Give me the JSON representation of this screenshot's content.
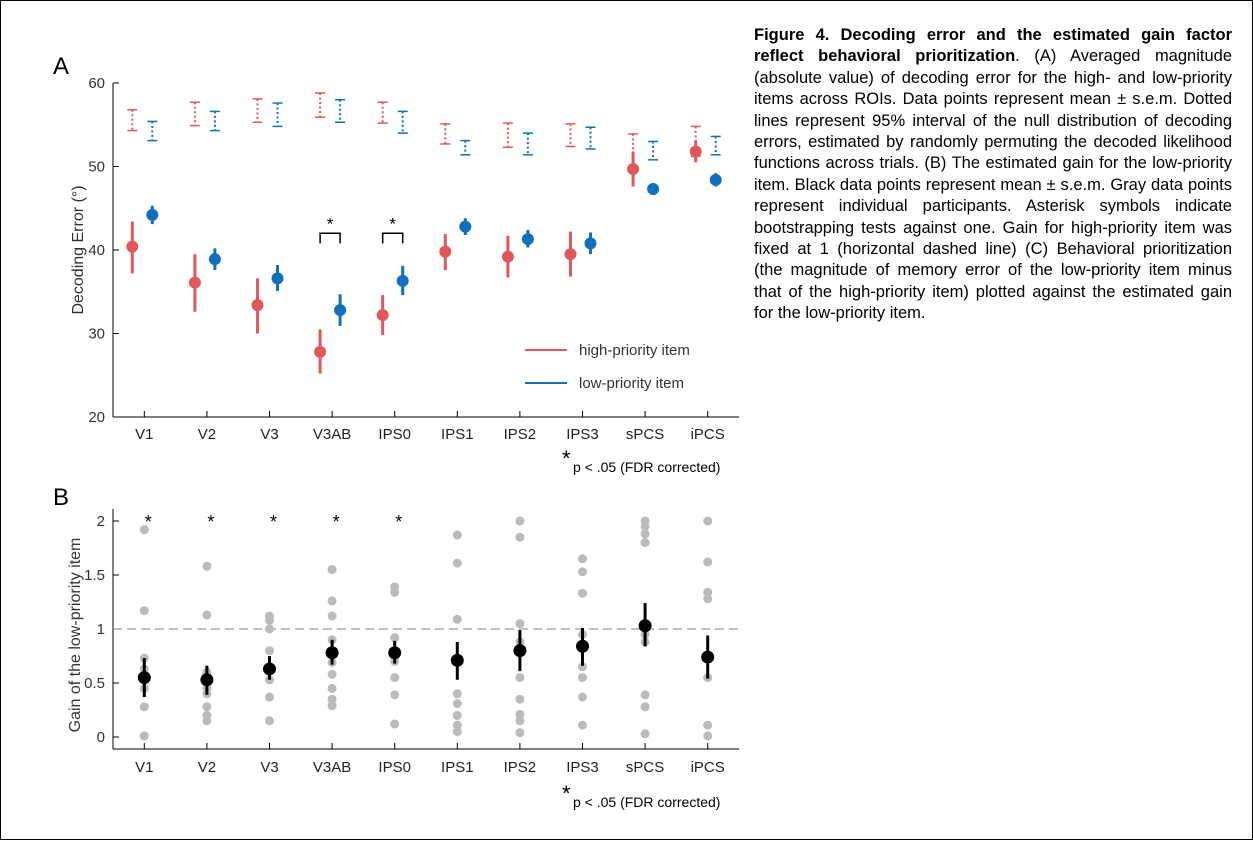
{
  "colors": {
    "high": "#e0585c",
    "low": "#1170bd",
    "mean": "#000000",
    "participant": "#b9bbbd",
    "axis": "#000000",
    "refline": "#808080"
  },
  "caption": {
    "title": "Figure 4. Decoding error and the estimated gain factor reflect behavioral prioritization",
    "body": ". (A) Averaged magnitude (absolute value) of decoding error for the high- and low-priority items across ROIs. Data points represent mean ± s.e.m. Dotted lines represent 95% interval of the null distribution of decoding errors, estimated by randomly permuting the decoded likelihood functions across trials. (B) The estimated gain for the low-priority item. Black data points represent mean ± s.e.m. Gray data points represent individual participants. Asterisk symbols indicate bootstrapping tests against one. Gain for high-priority item was fixed at 1 (horizontal dashed line) (C) Behavioral prioritization (the magnitude of memory error of the low-priority item minus that of the high-priority item) plotted against the estimated gain for the low-priority item."
  },
  "chart_data": [
    {
      "panel": "A",
      "type": "scatter",
      "ylabel": "Decoding Error (°)",
      "ylim": [
        20,
        60
      ],
      "yticks": [
        20,
        30,
        40,
        50,
        60
      ],
      "categories": [
        "V1",
        "V2",
        "V3",
        "V3AB",
        "IPS0",
        "IPS1",
        "IPS2",
        "IPS3",
        "sPCS",
        "iPCS"
      ],
      "series": [
        {
          "name": "high-priority item",
          "color": "#e0585c",
          "mean": [
            40.4,
            36.1,
            33.4,
            27.8,
            32.2,
            39.8,
            39.2,
            39.5,
            49.7,
            51.8
          ],
          "lower": [
            37.2,
            32.6,
            30.0,
            25.2,
            29.8,
            37.6,
            36.7,
            36.8,
            47.6,
            50.5
          ],
          "upper": [
            43.4,
            39.5,
            36.6,
            30.5,
            34.6,
            41.9,
            41.7,
            42.2,
            51.8,
            53.1
          ],
          "null_lower": [
            54.3,
            54.9,
            55.3,
            55.9,
            55.2,
            52.7,
            52.3,
            52.4,
            49.5,
            51.2
          ],
          "null_upper": [
            56.8,
            57.7,
            58.1,
            58.8,
            57.7,
            55.1,
            55.2,
            55.1,
            53.9,
            54.8
          ]
        },
        {
          "name": "low-priority item",
          "color": "#1170bd",
          "mean": [
            44.2,
            38.9,
            36.6,
            32.8,
            36.3,
            42.8,
            41.3,
            40.8,
            47.3,
            48.4
          ],
          "lower": [
            43.1,
            37.6,
            35.1,
            30.9,
            34.6,
            41.8,
            40.3,
            39.5,
            46.6,
            47.6
          ],
          "upper": [
            45.3,
            40.2,
            38.2,
            34.7,
            38.1,
            43.8,
            42.4,
            42.1,
            48.0,
            49.2
          ],
          "null_lower": [
            53.1,
            54.3,
            54.8,
            55.3,
            54.0,
            51.4,
            51.4,
            52.1,
            50.8,
            51.4
          ],
          "null_upper": [
            55.4,
            56.6,
            57.6,
            58.0,
            56.6,
            53.1,
            54.0,
            54.7,
            53.0,
            53.6
          ]
        }
      ],
      "significance": [
        {
          "between": "V3AB",
          "label": "*"
        },
        {
          "between": "IPS0",
          "label": "*"
        }
      ],
      "legend": {
        "position": "bottom-right"
      },
      "footnote": {
        "star": "*",
        "text": "p < .05 (FDR corrected)"
      }
    },
    {
      "panel": "B",
      "type": "scatter",
      "ylabel": "Gain of the low-priority item",
      "ylim": [
        0,
        2
      ],
      "ytick_labels": [
        "0",
        "0.5",
        "1",
        "1.5",
        "2"
      ],
      "reference_line": 1,
      "categories": [
        "V1",
        "V2",
        "V3",
        "V3AB",
        "IPS0",
        "IPS1",
        "IPS2",
        "IPS3",
        "sPCS",
        "iPCS"
      ],
      "mean": [
        0.55,
        0.53,
        0.63,
        0.78,
        0.78,
        0.71,
        0.8,
        0.84,
        1.03,
        0.74
      ],
      "lower": [
        0.37,
        0.39,
        0.53,
        0.67,
        0.68,
        0.53,
        0.61,
        0.66,
        0.84,
        0.54
      ],
      "upper": [
        0.73,
        0.66,
        0.75,
        0.9,
        0.89,
        0.88,
        0.99,
        1.01,
        1.24,
        0.94
      ],
      "participants": [
        [
          1.92,
          1.17,
          0.73,
          0.63,
          0.55,
          0.45,
          0.28,
          0.01
        ],
        [
          1.58,
          1.13,
          0.6,
          0.45,
          0.4,
          0.28,
          0.2,
          0.15
        ],
        [
          1.12,
          1.08,
          1.0,
          0.8,
          0.63,
          0.53,
          0.37,
          0.15
        ],
        [
          1.55,
          1.26,
          1.12,
          0.9,
          0.78,
          0.69,
          0.58,
          0.45,
          0.35,
          0.29
        ],
        [
          1.39,
          1.34,
          0.92,
          0.78,
          0.7,
          0.55,
          0.39,
          0.12
        ],
        [
          1.87,
          1.61,
          1.09,
          0.71,
          0.4,
          0.31,
          0.2,
          0.11,
          0.05
        ],
        [
          2.0,
          1.85,
          1.05,
          0.88,
          0.55,
          0.35,
          0.21,
          0.15,
          0.04
        ],
        [
          1.65,
          1.53,
          1.33,
          0.95,
          0.65,
          0.55,
          0.37,
          0.11
        ],
        [
          2.0,
          1.95,
          1.88,
          1.8,
          1.05,
          0.95,
          0.88,
          0.39,
          0.28,
          0.03
        ],
        [
          2.0,
          1.62,
          1.34,
          1.28,
          0.75,
          0.55,
          0.11,
          0.01
        ]
      ],
      "significance": [
        "*",
        "*",
        "*",
        "*",
        "*",
        "",
        "",
        "",
        "",
        ""
      ],
      "footnote": {
        "star": "*",
        "text": "p < .05 (FDR corrected)"
      }
    }
  ],
  "panels": {
    "a": {
      "label": "A"
    },
    "b": {
      "label": "B"
    }
  }
}
